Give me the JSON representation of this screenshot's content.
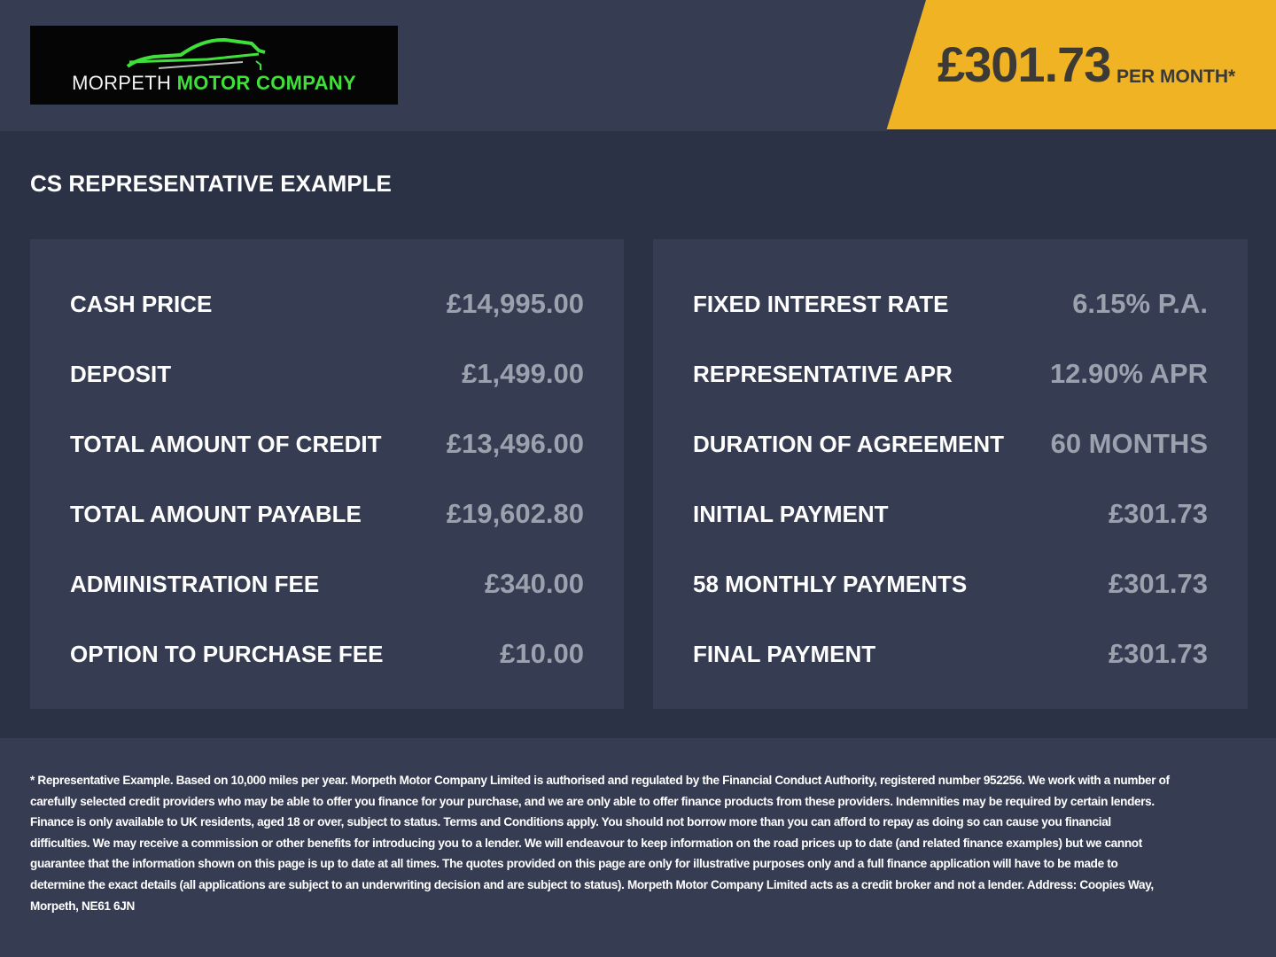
{
  "logo": {
    "word1": "MORPETH",
    "word2": "MOTOR COMPANY"
  },
  "price_badge": {
    "amount": "£301.73",
    "suffix": "PER MONTH*",
    "color": "#f0b323"
  },
  "section_title": "CS REPRESENTATIVE EXAMPLE",
  "left_panel": [
    {
      "label": "CASH PRICE",
      "value": "£14,995.00"
    },
    {
      "label": "DEPOSIT",
      "value": "£1,499.00"
    },
    {
      "label": "TOTAL AMOUNT OF CREDIT",
      "value": "£13,496.00"
    },
    {
      "label": "TOTAL AMOUNT PAYABLE",
      "value": "£19,602.80"
    },
    {
      "label": "ADMINISTRATION FEE",
      "value": "£340.00"
    },
    {
      "label": "OPTION TO PURCHASE FEE",
      "value": "£10.00"
    }
  ],
  "right_panel": [
    {
      "label": "FIXED INTEREST RATE",
      "value": "6.15% P.A."
    },
    {
      "label": "REPRESENTATIVE APR",
      "value": "12.90% APR"
    },
    {
      "label": "DURATION OF AGREEMENT",
      "value": "60 MONTHS"
    },
    {
      "label": "INITIAL PAYMENT",
      "value": "£301.73"
    },
    {
      "label": "58 MONTHLY PAYMENTS",
      "value": "£301.73"
    },
    {
      "label": "FINAL PAYMENT",
      "value": "£301.73"
    }
  ],
  "disclaimer": [
    "* Representative Example. Based on 10,000 miles per year. Morpeth Motor Company Limited is authorised and regulated by the Financial Conduct Authority, registered number 952256. We work with a number of",
    "carefully selected credit providers who may be able to offer you finance for your purchase, and we are only able to offer finance products from these providers. Indemnities may be required by certain lenders.",
    "Finance is only available to UK residents, aged 18 or over, subject to status. Terms and Conditions apply. You should not borrow more than you can afford to repay as doing so can cause you financial",
    "difficulties. We may receive a commission or other benefits for introducing you to a lender. We will endeavour to keep information on the road prices up to date (and related finance examples) but we cannot",
    "guarantee that the information shown on this page is up to date at all times. The quotes provided on this page are only for illustrative purposes only and a full finance application will have to be made to",
    "determine the exact details (all applications are subject to an underwriting decision and are subject to status). Morpeth Motor Company Limited acts as a credit broker and not a lender. Address: Coopies Way,",
    "Morpeth, NE61 6JN"
  ]
}
